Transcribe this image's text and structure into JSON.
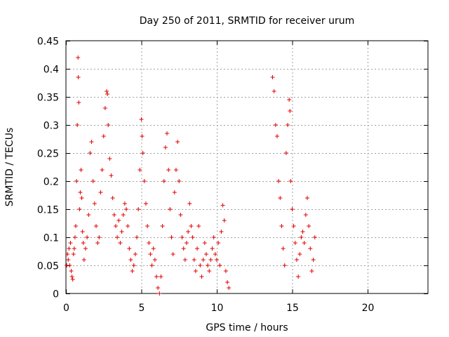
{
  "chart_data": {
    "type": "scatter",
    "title": "Day 250 of 2011, SRMTID for receiver urum",
    "xlabel": "GPS time / hours",
    "ylabel": "SRMTID / TECUs",
    "xlim": [
      0,
      24
    ],
    "ylim": [
      0,
      0.45
    ],
    "xticks": [
      0,
      5,
      10,
      15,
      20
    ],
    "xtick_labels": [
      "0",
      "5",
      "10",
      "15",
      "20"
    ],
    "yticks": [
      0,
      0.05,
      0.1,
      0.15,
      0.2,
      0.25,
      0.3,
      0.35,
      0.4,
      0.45
    ],
    "ytick_labels": [
      "0",
      "0.05",
      "0.1",
      "0.15",
      "0.2",
      "0.25",
      "0.3",
      "0.35",
      "0.4",
      "0.45"
    ],
    "grid": true,
    "marker": "+",
    "marker_color": "#e00000",
    "series": [
      {
        "name": "SRMTID",
        "points": [
          [
            0.05,
            0.05
          ],
          [
            0.1,
            0.07
          ],
          [
            0.15,
            0.06
          ],
          [
            0.2,
            0.08
          ],
          [
            0.25,
            0.05
          ],
          [
            0.3,
            0.09
          ],
          [
            0.35,
            0.04
          ],
          [
            0.4,
            0.03
          ],
          [
            0.45,
            0.025
          ],
          [
            0.5,
            0.07
          ],
          [
            0.55,
            0.08
          ],
          [
            0.6,
            0.1
          ],
          [
            0.65,
            0.12
          ],
          [
            0.7,
            0.2
          ],
          [
            0.75,
            0.3
          ],
          [
            0.8,
            0.42
          ],
          [
            0.82,
            0.385
          ],
          [
            0.85,
            0.34
          ],
          [
            0.9,
            0.15
          ],
          [
            0.95,
            0.18
          ],
          [
            1.0,
            0.22
          ],
          [
            1.05,
            0.17
          ],
          [
            1.1,
            0.11
          ],
          [
            1.15,
            0.09
          ],
          [
            1.2,
            0.06
          ],
          [
            1.3,
            0.08
          ],
          [
            1.4,
            0.1
          ],
          [
            1.5,
            0.14
          ],
          [
            1.6,
            0.25
          ],
          [
            1.7,
            0.27
          ],
          [
            1.8,
            0.2
          ],
          [
            1.9,
            0.16
          ],
          [
            2.0,
            0.12
          ],
          [
            2.1,
            0.09
          ],
          [
            2.2,
            0.1
          ],
          [
            2.3,
            0.18
          ],
          [
            2.4,
            0.22
          ],
          [
            2.5,
            0.28
          ],
          [
            2.6,
            0.33
          ],
          [
            2.7,
            0.36
          ],
          [
            2.75,
            0.355
          ],
          [
            2.8,
            0.3
          ],
          [
            2.9,
            0.24
          ],
          [
            3.0,
            0.21
          ],
          [
            3.1,
            0.17
          ],
          [
            3.2,
            0.14
          ],
          [
            3.3,
            0.12
          ],
          [
            3.4,
            0.1
          ],
          [
            3.5,
            0.13
          ],
          [
            3.6,
            0.09
          ],
          [
            3.7,
            0.11
          ],
          [
            3.8,
            0.14
          ],
          [
            3.9,
            0.16
          ],
          [
            4.0,
            0.15
          ],
          [
            4.1,
            0.12
          ],
          [
            4.2,
            0.08
          ],
          [
            4.3,
            0.06
          ],
          [
            4.4,
            0.04
          ],
          [
            4.5,
            0.05
          ],
          [
            4.6,
            0.07
          ],
          [
            4.7,
            0.1
          ],
          [
            4.8,
            0.15
          ],
          [
            4.9,
            0.22
          ],
          [
            5.0,
            0.31
          ],
          [
            5.05,
            0.28
          ],
          [
            5.1,
            0.25
          ],
          [
            5.2,
            0.2
          ],
          [
            5.3,
            0.16
          ],
          [
            5.4,
            0.12
          ],
          [
            5.5,
            0.09
          ],
          [
            5.6,
            0.07
          ],
          [
            5.7,
            0.05
          ],
          [
            5.8,
            0.08
          ],
          [
            5.9,
            0.06
          ],
          [
            6.0,
            0.03
          ],
          [
            6.1,
            0.01
          ],
          [
            6.2,
            0.0
          ],
          [
            6.3,
            0.03
          ],
          [
            6.4,
            0.12
          ],
          [
            6.5,
            0.2
          ],
          [
            6.6,
            0.26
          ],
          [
            6.7,
            0.285
          ],
          [
            6.8,
            0.22
          ],
          [
            6.9,
            0.15
          ],
          [
            7.0,
            0.1
          ],
          [
            7.1,
            0.07
          ],
          [
            7.2,
            0.18
          ],
          [
            7.3,
            0.22
          ],
          [
            7.4,
            0.27
          ],
          [
            7.5,
            0.2
          ],
          [
            7.6,
            0.14
          ],
          [
            7.7,
            0.1
          ],
          [
            7.8,
            0.08
          ],
          [
            7.9,
            0.06
          ],
          [
            8.0,
            0.09
          ],
          [
            8.1,
            0.11
          ],
          [
            8.2,
            0.16
          ],
          [
            8.3,
            0.12
          ],
          [
            8.4,
            0.1
          ],
          [
            8.5,
            0.06
          ],
          [
            8.6,
            0.04
          ],
          [
            8.7,
            0.08
          ],
          [
            8.8,
            0.12
          ],
          [
            8.9,
            0.05
          ],
          [
            9.0,
            0.03
          ],
          [
            9.1,
            0.06
          ],
          [
            9.2,
            0.09
          ],
          [
            9.3,
            0.07
          ],
          [
            9.4,
            0.05
          ],
          [
            9.5,
            0.04
          ],
          [
            9.6,
            0.06
          ],
          [
            9.7,
            0.08
          ],
          [
            9.8,
            0.1
          ],
          [
            9.9,
            0.07
          ],
          [
            10.0,
            0.06
          ],
          [
            10.1,
            0.09
          ],
          [
            10.2,
            0.05
          ],
          [
            10.3,
            0.11
          ],
          [
            10.4,
            0.157
          ],
          [
            10.5,
            0.13
          ],
          [
            10.6,
            0.04
          ],
          [
            10.7,
            0.02
          ],
          [
            10.8,
            0.01
          ],
          [
            13.7,
            0.385
          ],
          [
            13.8,
            0.36
          ],
          [
            13.9,
            0.3
          ],
          [
            14.0,
            0.28
          ],
          [
            14.1,
            0.2
          ],
          [
            14.2,
            0.17
          ],
          [
            14.3,
            0.12
          ],
          [
            14.4,
            0.08
          ],
          [
            14.5,
            0.05
          ],
          [
            14.6,
            0.25
          ],
          [
            14.7,
            0.3
          ],
          [
            14.8,
            0.345
          ],
          [
            14.85,
            0.325
          ],
          [
            14.9,
            0.2
          ],
          [
            15.0,
            0.15
          ],
          [
            15.1,
            0.12
          ],
          [
            15.2,
            0.09
          ],
          [
            15.3,
            0.06
          ],
          [
            15.4,
            0.03
          ],
          [
            15.5,
            0.07
          ],
          [
            15.6,
            0.1
          ],
          [
            15.7,
            0.11
          ],
          [
            15.8,
            0.09
          ],
          [
            15.9,
            0.14
          ],
          [
            16.0,
            0.17
          ],
          [
            16.1,
            0.12
          ],
          [
            16.2,
            0.08
          ],
          [
            16.3,
            0.04
          ],
          [
            16.4,
            0.06
          ],
          [
            16.5,
            0.1
          ]
        ]
      }
    ]
  }
}
